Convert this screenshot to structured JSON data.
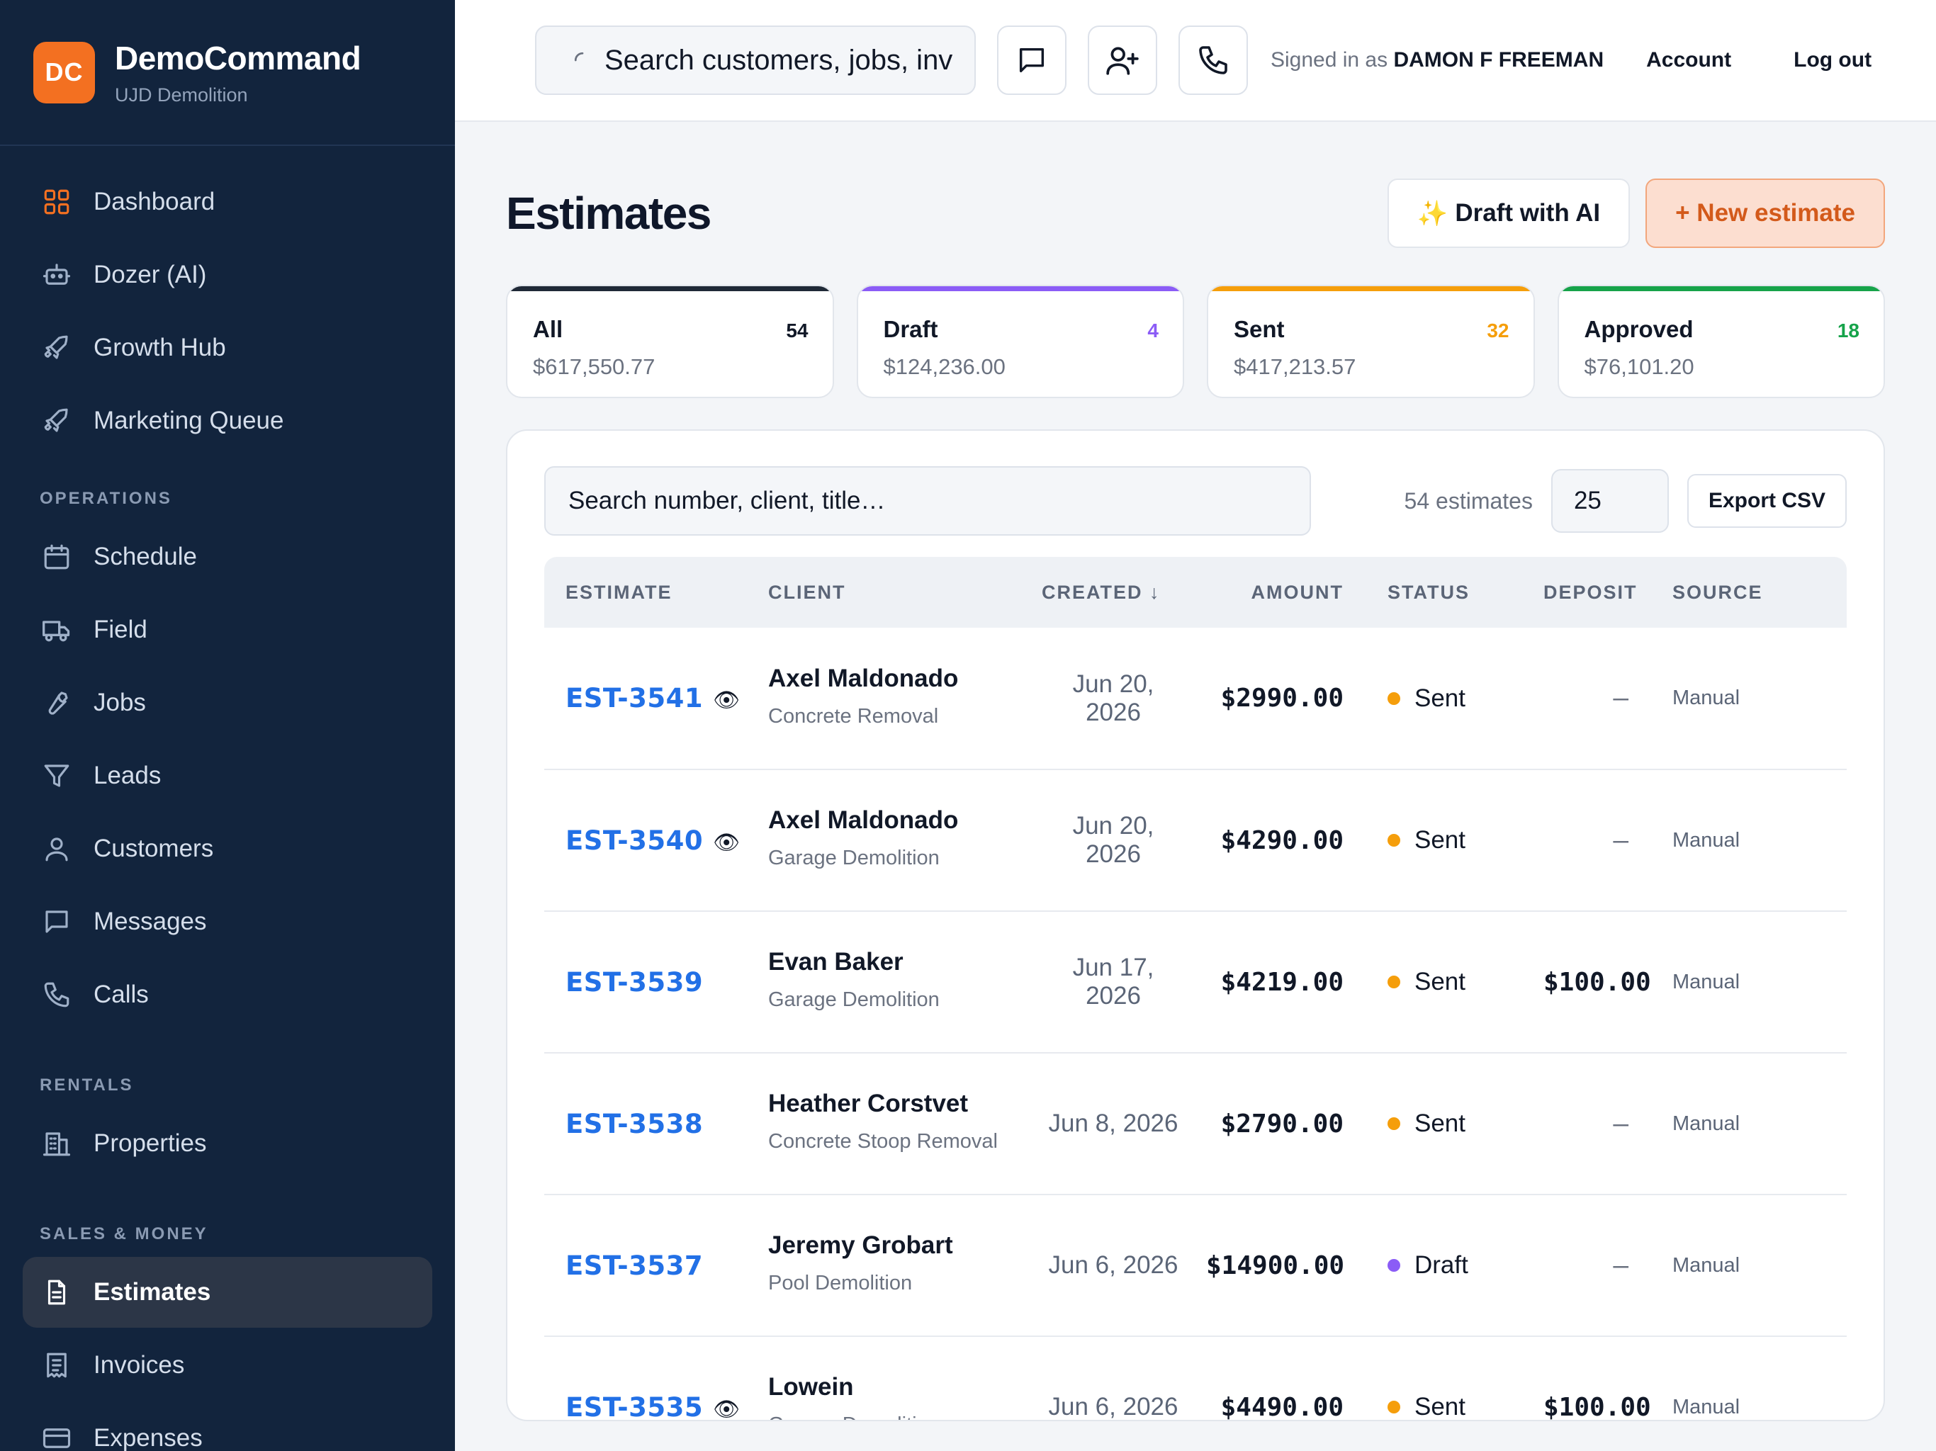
{
  "brand": {
    "logo_text": "DC",
    "name": "DemoCommand",
    "subtitle": "UJD Demolition"
  },
  "sidebar": {
    "top_items": [
      {
        "label": "Dashboard",
        "icon": "grid-icon"
      },
      {
        "label": "Dozer (AI)",
        "icon": "robot-icon"
      },
      {
        "label": "Growth Hub",
        "icon": "rocket-icon"
      },
      {
        "label": "Marketing Queue",
        "icon": "rocket-icon"
      }
    ],
    "sections": [
      {
        "title": "OPERATIONS",
        "items": [
          {
            "label": "Schedule",
            "icon": "calendar-icon"
          },
          {
            "label": "Field",
            "icon": "truck-icon"
          },
          {
            "label": "Jobs",
            "icon": "wrench-icon"
          },
          {
            "label": "Leads",
            "icon": "filter-icon"
          },
          {
            "label": "Customers",
            "icon": "user-icon"
          },
          {
            "label": "Messages",
            "icon": "message-icon"
          },
          {
            "label": "Calls",
            "icon": "phone-icon"
          }
        ]
      },
      {
        "title": "RENTALS",
        "items": [
          {
            "label": "Properties",
            "icon": "building-icon"
          }
        ]
      },
      {
        "title": "SALES & MONEY",
        "items": [
          {
            "label": "Estimates",
            "icon": "document-icon",
            "active": true
          },
          {
            "label": "Invoices",
            "icon": "receipt-icon"
          },
          {
            "label": "Expenses",
            "icon": "card-icon"
          }
        ]
      }
    ]
  },
  "topbar": {
    "search_text": "Search customers, jobs, inv",
    "signed_in_prefix": "Signed in as",
    "user_name": "DAMON F FREEMAN",
    "account_label": "Account",
    "logout_label": "Log out"
  },
  "page": {
    "title": "Estimates",
    "draft_ai_label": "Draft with AI",
    "new_estimate_label": "+ New estimate"
  },
  "stats": [
    {
      "label": "All",
      "count": "54",
      "amount": "$617,550.77",
      "color": "#1f2937"
    },
    {
      "label": "Draft",
      "count": "4",
      "amount": "$124,236.00",
      "color": "#8b5cf6"
    },
    {
      "label": "Sent",
      "count": "32",
      "amount": "$417,213.57",
      "color": "#f59e0b"
    },
    {
      "label": "Approved",
      "count": "18",
      "amount": "$76,101.20",
      "color": "#16a34a"
    }
  ],
  "list": {
    "search_placeholder": "Search number, client, title…",
    "count_text": "54 estimates",
    "per_page": "25",
    "export_label": "Export CSV",
    "columns": [
      "ESTIMATE",
      "CLIENT",
      "CREATED ↓",
      "AMOUNT",
      "STATUS",
      "DEPOSIT",
      "SOURCE"
    ],
    "rows": [
      {
        "number": "EST-3541",
        "viewed": true,
        "client": "Axel Maldonado",
        "title": "Concrete Removal",
        "created": "Jun 20, 2026",
        "amount": "$2990.00",
        "status": "Sent",
        "deposit": "—",
        "source": "Manual"
      },
      {
        "number": "EST-3540",
        "viewed": true,
        "client": "Axel Maldonado",
        "title": "Garage Demolition",
        "created": "Jun 20, 2026",
        "amount": "$4290.00",
        "status": "Sent",
        "deposit": "—",
        "source": "Manual"
      },
      {
        "number": "EST-3539",
        "viewed": false,
        "client": "Evan Baker",
        "title": "Garage Demolition",
        "created": "Jun 17, 2026",
        "amount": "$4219.00",
        "status": "Sent",
        "deposit": "$100.00",
        "source": "Manual"
      },
      {
        "number": "EST-3538",
        "viewed": false,
        "client": "Heather Corstvet",
        "title": "Concrete Stoop Removal",
        "created": "Jun 8, 2026",
        "amount": "$2790.00",
        "status": "Sent",
        "deposit": "—",
        "source": "Manual"
      },
      {
        "number": "EST-3537",
        "viewed": false,
        "client": "Jeremy Grobart",
        "title": "Pool Demolition",
        "created": "Jun 6, 2026",
        "amount": "$14900.00",
        "status": "Draft",
        "deposit": "—",
        "source": "Manual"
      },
      {
        "number": "EST-3535",
        "viewed": true,
        "client": "Lowein",
        "title": "Garage Demolition",
        "created": "Jun 6, 2026",
        "amount": "$4490.00",
        "status": "Sent",
        "deposit": "$100.00",
        "source": "Manual"
      }
    ]
  },
  "colors": {
    "accent": "#f37021",
    "sent": "#f59e0b",
    "draft": "#8b5cf6",
    "link": "#2270e6",
    "sidebar_bg": "#12243d"
  }
}
